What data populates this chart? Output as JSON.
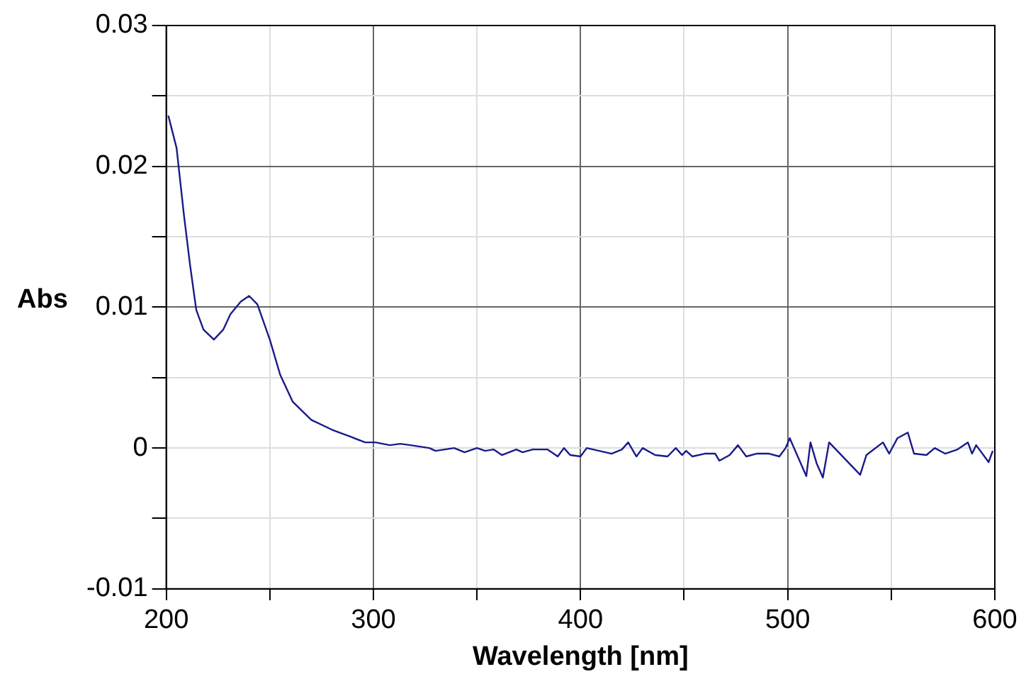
{
  "chart_data": {
    "type": "line",
    "xlabel": "Wavelength [nm]",
    "ylabel": "Abs",
    "xlim": [
      200,
      600
    ],
    "xticks": [
      200,
      {
        "value": 250,
        "label": null
      },
      300,
      {
        "value": 350,
        "label": null
      },
      400,
      {
        "value": 450,
        "label": null
      },
      500,
      {
        "value": 550,
        "label": null
      },
      600
    ],
    "ylim": [
      -0.01,
      0.03
    ],
    "yticks": [
      -0.01,
      {
        "value": -0.005,
        "label": null
      },
      0,
      {
        "value": 0.005,
        "label": null
      },
      0.01,
      {
        "value": 0.015,
        "label": null
      },
      0.02,
      {
        "value": 0.025,
        "label": null
      },
      0.03
    ],
    "grid": true,
    "legend": false,
    "marker": "none",
    "line_style": "solid",
    "series": [
      {
        "color": "#1a1a8c",
        "x": [
          201,
          205,
          208.5,
          211.5,
          214.5,
          218,
          223,
          227.5,
          231,
          236,
          240,
          244,
          250,
          255,
          261,
          270,
          280,
          289,
          296,
          301,
          308,
          313,
          318,
          327,
          330,
          339,
          344,
          350,
          354,
          358,
          362,
          369,
          372,
          377,
          384,
          389,
          392,
          395,
          400,
          403,
          409,
          415,
          420,
          423,
          427,
          430,
          436,
          442,
          446,
          449,
          451,
          454,
          460,
          465,
          467,
          472,
          476,
          480,
          485,
          491,
          496,
          499,
          501,
          509,
          511,
          514,
          517,
          520,
          535,
          538,
          546,
          549,
          553,
          558,
          561,
          567,
          571,
          576,
          582,
          587,
          589,
          591,
          597,
          599
        ],
        "values": [
          0.0236,
          0.0213,
          0.0166,
          0.013,
          0.0098,
          0.0084,
          0.0077,
          0.0084,
          0.0095,
          0.0104,
          0.0108,
          0.0102,
          0.0077,
          0.0052,
          0.0033,
          0.002,
          0.0013,
          0.0008,
          0.0004,
          0.0004,
          0.0002,
          0.0003,
          0.0002,
          0,
          -0.0002,
          0,
          -0.0003,
          0,
          -0.0002,
          -0.0001,
          -0.0005,
          -0.0001,
          -0.0003,
          -0.0001,
          -0.0001,
          -0.0006,
          0,
          -0.0005,
          -0.0006,
          0,
          -0.0002,
          -0.0004,
          -0.0001,
          0.0004,
          -0.0006,
          0,
          -0.0005,
          -0.0006,
          0,
          -0.0005,
          -0.0002,
          -0.0006,
          -0.0004,
          -0.0004,
          -0.0009,
          -0.0005,
          0.0002,
          -0.0006,
          -0.0004,
          -0.0004,
          -0.0006,
          0,
          0.0007,
          -0.002,
          0.0004,
          -0.0011,
          -0.0021,
          0.0004,
          -0.0019,
          -0.0005,
          0.0004,
          -0.0004,
          0.0007,
          0.0011,
          -0.0004,
          -0.0005,
          0,
          -0.0004,
          -0.0001,
          0.0004,
          -0.0004,
          0.0002,
          -0.001,
          -0.0002
        ]
      }
    ]
  }
}
